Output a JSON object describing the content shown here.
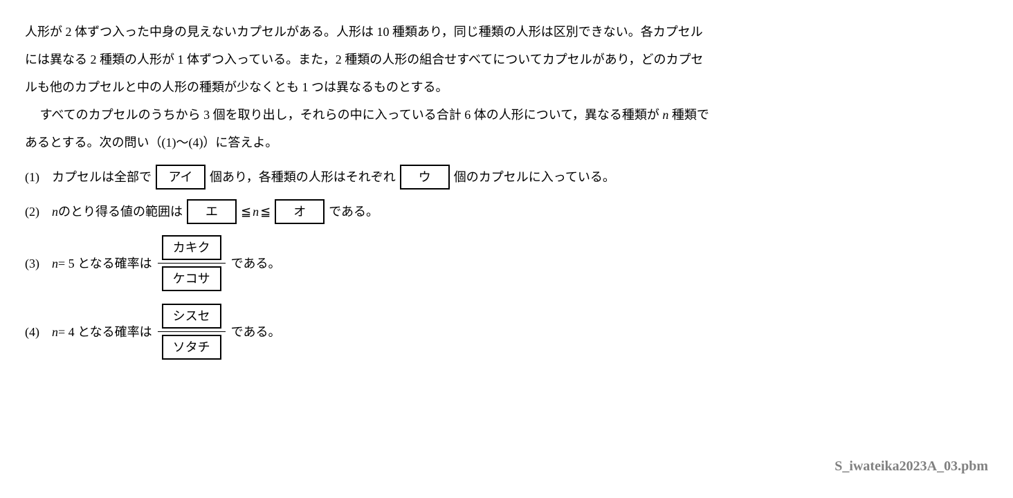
{
  "intro": {
    "line1": "人形が 2 体ずつ入った中身の見えないカプセルがある。人形は 10 種類あり，同じ種類の人形は区別できない。各カプセル",
    "line2": "には異なる 2 種類の人形が 1 体ずつ入っている。また，2 種類の人形の組合せすべてについてカプセルがあり，どのカプセ",
    "line3": "ルも他のカプセルと中の人形の種類が少なくとも 1 つは異なるものとする。",
    "line4a": "すべてのカプセルのうちから 3 個を取り出し，それらの中に入っている合計 6 体の人形について，異なる種類が ",
    "line4b": " 種類で",
    "line5": "あるとする。次の問い（(1)〜(4)）に答えよ。"
  },
  "q1": {
    "num": "(1)",
    "t1": "カプセルは全部で",
    "box1": "アイ",
    "t2": "個あり，各種類の人形はそれぞれ",
    "box2": "ウ",
    "t3": "個のカプセルに入っている。"
  },
  "q2": {
    "num": "(2)",
    "t1_var": "n",
    "t1": " のとり得る値の範囲は",
    "box1": "エ",
    "rel1": "≦",
    "var": "n",
    "rel2": "≦",
    "box2": "オ",
    "t2": "である。"
  },
  "q3": {
    "num": "(3)",
    "var": "n",
    "t1": " = 5 となる確率は",
    "numBox": "カキク",
    "denBox": "ケコサ",
    "t2": "である。"
  },
  "q4": {
    "num": "(4)",
    "var": "n",
    "t1": " = 4 となる確率は",
    "numBox": "シスセ",
    "denBox": "ソタチ",
    "t2": "である。"
  },
  "footer": "S_iwateika2023A_03.pbm",
  "nvar": "n"
}
